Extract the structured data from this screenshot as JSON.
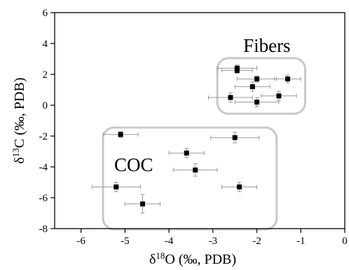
{
  "chart_data": {
    "type": "scatter",
    "xlabel": {
      "prefix": "δ",
      "sup": "18",
      "suffix": "O (‰, PDB)"
    },
    "ylabel": {
      "prefix": "δ",
      "sup": "13",
      "suffix": "C (‰, PDB)"
    },
    "xlim": [
      -6.6,
      0
    ],
    "ylim": [
      -8,
      6
    ],
    "xticks": [
      -6,
      -5,
      -4,
      -3,
      -2,
      -1,
      0
    ],
    "xtick_labels": [
      "-6",
      "-5",
      "-4",
      "-3",
      "-2",
      "-1",
      "0"
    ],
    "yticks": [
      -8,
      -6,
      -4,
      -2,
      0,
      2,
      4,
      6
    ],
    "ytick_labels": [
      "-8",
      "-6",
      "-4",
      "-2",
      "0",
      "2",
      "4",
      "6"
    ],
    "grid": false,
    "legend": "none",
    "colors": {
      "marker": "#000000",
      "errorbar": "#999999",
      "group_box": "#c8c8c8"
    },
    "groups": [
      {
        "label": "Fibers",
        "x_range": [
          -2.9,
          -0.9
        ],
        "y_range": [
          -0.55,
          3.05
        ]
      },
      {
        "label": "COC",
        "x_range": [
          -5.5,
          -1.55
        ],
        "y_range": [
          -8.05,
          -1.45
        ]
      }
    ],
    "points": [
      {
        "group": "Fibers",
        "x": -2.45,
        "y": 2.4,
        "xerr": 0.45,
        "yerr": 0.2
      },
      {
        "group": "Fibers",
        "x": -2.45,
        "y": 2.25,
        "xerr": 0.35,
        "yerr": 0.2
      },
      {
        "group": "Fibers",
        "x": -2.0,
        "y": 1.7,
        "xerr": 0.45,
        "yerr": 0.2
      },
      {
        "group": "Fibers",
        "x": -1.3,
        "y": 1.7,
        "xerr": 0.3,
        "yerr": 0.25
      },
      {
        "group": "Fibers",
        "x": -2.1,
        "y": 1.2,
        "xerr": 0.4,
        "yerr": 0.3
      },
      {
        "group": "Fibers",
        "x": -1.5,
        "y": 0.6,
        "xerr": 0.4,
        "yerr": 0.3
      },
      {
        "group": "Fibers",
        "x": -2.6,
        "y": 0.5,
        "xerr": 0.5,
        "yerr": 0.3
      },
      {
        "group": "Fibers",
        "x": -2.0,
        "y": 0.2,
        "xerr": 0.5,
        "yerr": 0.3
      },
      {
        "group": "COC",
        "x": -5.1,
        "y": -1.9,
        "xerr": 0.4,
        "yerr": 0.2
      },
      {
        "group": "COC",
        "x": -2.5,
        "y": -2.1,
        "xerr": 0.55,
        "yerr": 0.35
      },
      {
        "group": "COC",
        "x": -3.6,
        "y": -3.1,
        "xerr": 0.4,
        "yerr": 0.3
      },
      {
        "group": "COC",
        "x": -3.4,
        "y": -4.2,
        "xerr": 0.5,
        "yerr": 0.4
      },
      {
        "group": "COC",
        "x": -5.2,
        "y": -5.3,
        "xerr": 0.55,
        "yerr": 0.3
      },
      {
        "group": "COC",
        "x": -2.4,
        "y": -5.3,
        "xerr": 0.4,
        "yerr": 0.3
      },
      {
        "group": "COC",
        "x": -4.6,
        "y": -6.4,
        "xerr": 0.4,
        "yerr": 0.6
      }
    ]
  }
}
